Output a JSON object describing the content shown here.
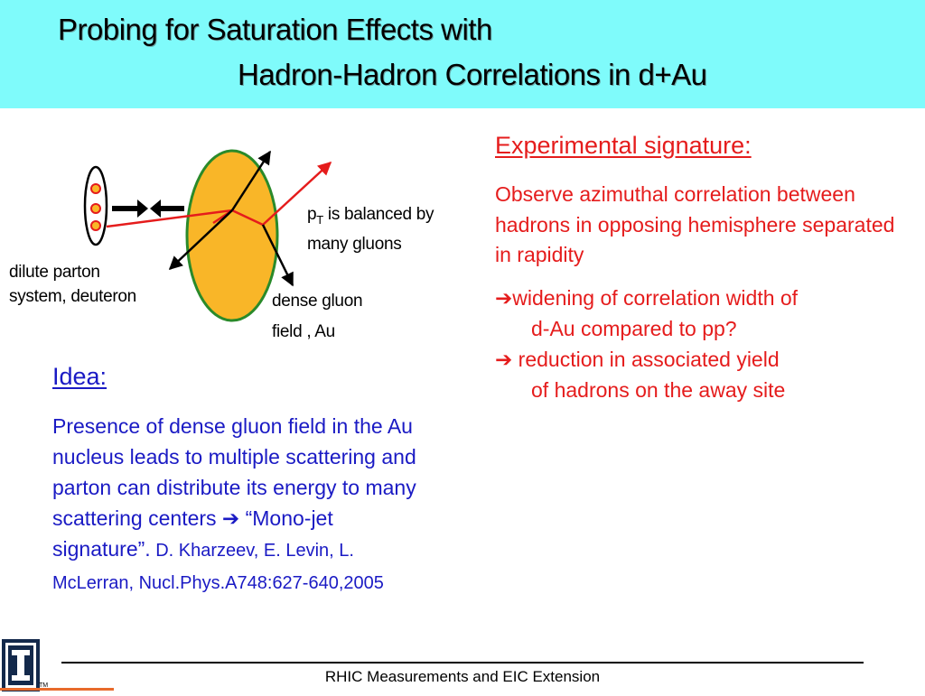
{
  "title": {
    "line1": "Probing for Saturation Effects with",
    "line2": "Hadron-Hadron Correlations in d+Au"
  },
  "diagram": {
    "label_left_1": "dilute parton",
    "label_left_2": "system, deuteron",
    "label_pt_p": "p",
    "label_pt_sub": "T",
    "label_pt_rest": " is balanced by",
    "label_pt_2": "many gluons",
    "label_dense_1": "dense gluon",
    "label_dense_2": "field , Au",
    "colors": {
      "nucleus_fill": "#f9b628",
      "nucleus_edge": "#2a8a2a",
      "parton": "#e51c1c",
      "arrow": "#000000"
    }
  },
  "experimental": {
    "heading": "Experimental signature:",
    "body": "Observe azimuthal correlation between hadrons in opposing hemisphere separated in rapidity",
    "bullets": [
      {
        "line1": "widening of correlation width of",
        "line2": "d-Au compared to pp?"
      },
      {
        "line1": " reduction in associated yield",
        "line2": "of hadrons on the away site"
      }
    ],
    "color": "#e51c1c"
  },
  "idea": {
    "heading": "Idea:",
    "body_1": "Presence of dense gluon field in the Au nucleus leads to multiple scattering and parton can distribute its energy to many scattering centers ",
    "body_2": " “Mono-jet signature”.",
    "reference": " D. Kharzeev, E. Levin, L. McLerran, Nucl.Phys.A748:627-640,2005",
    "color": "#1a1ac4"
  },
  "footer": {
    "text": "RHIC Measurements and EIC Extension"
  },
  "logo": {
    "icon": "illinois-block-i-icon",
    "tm": "TM"
  }
}
